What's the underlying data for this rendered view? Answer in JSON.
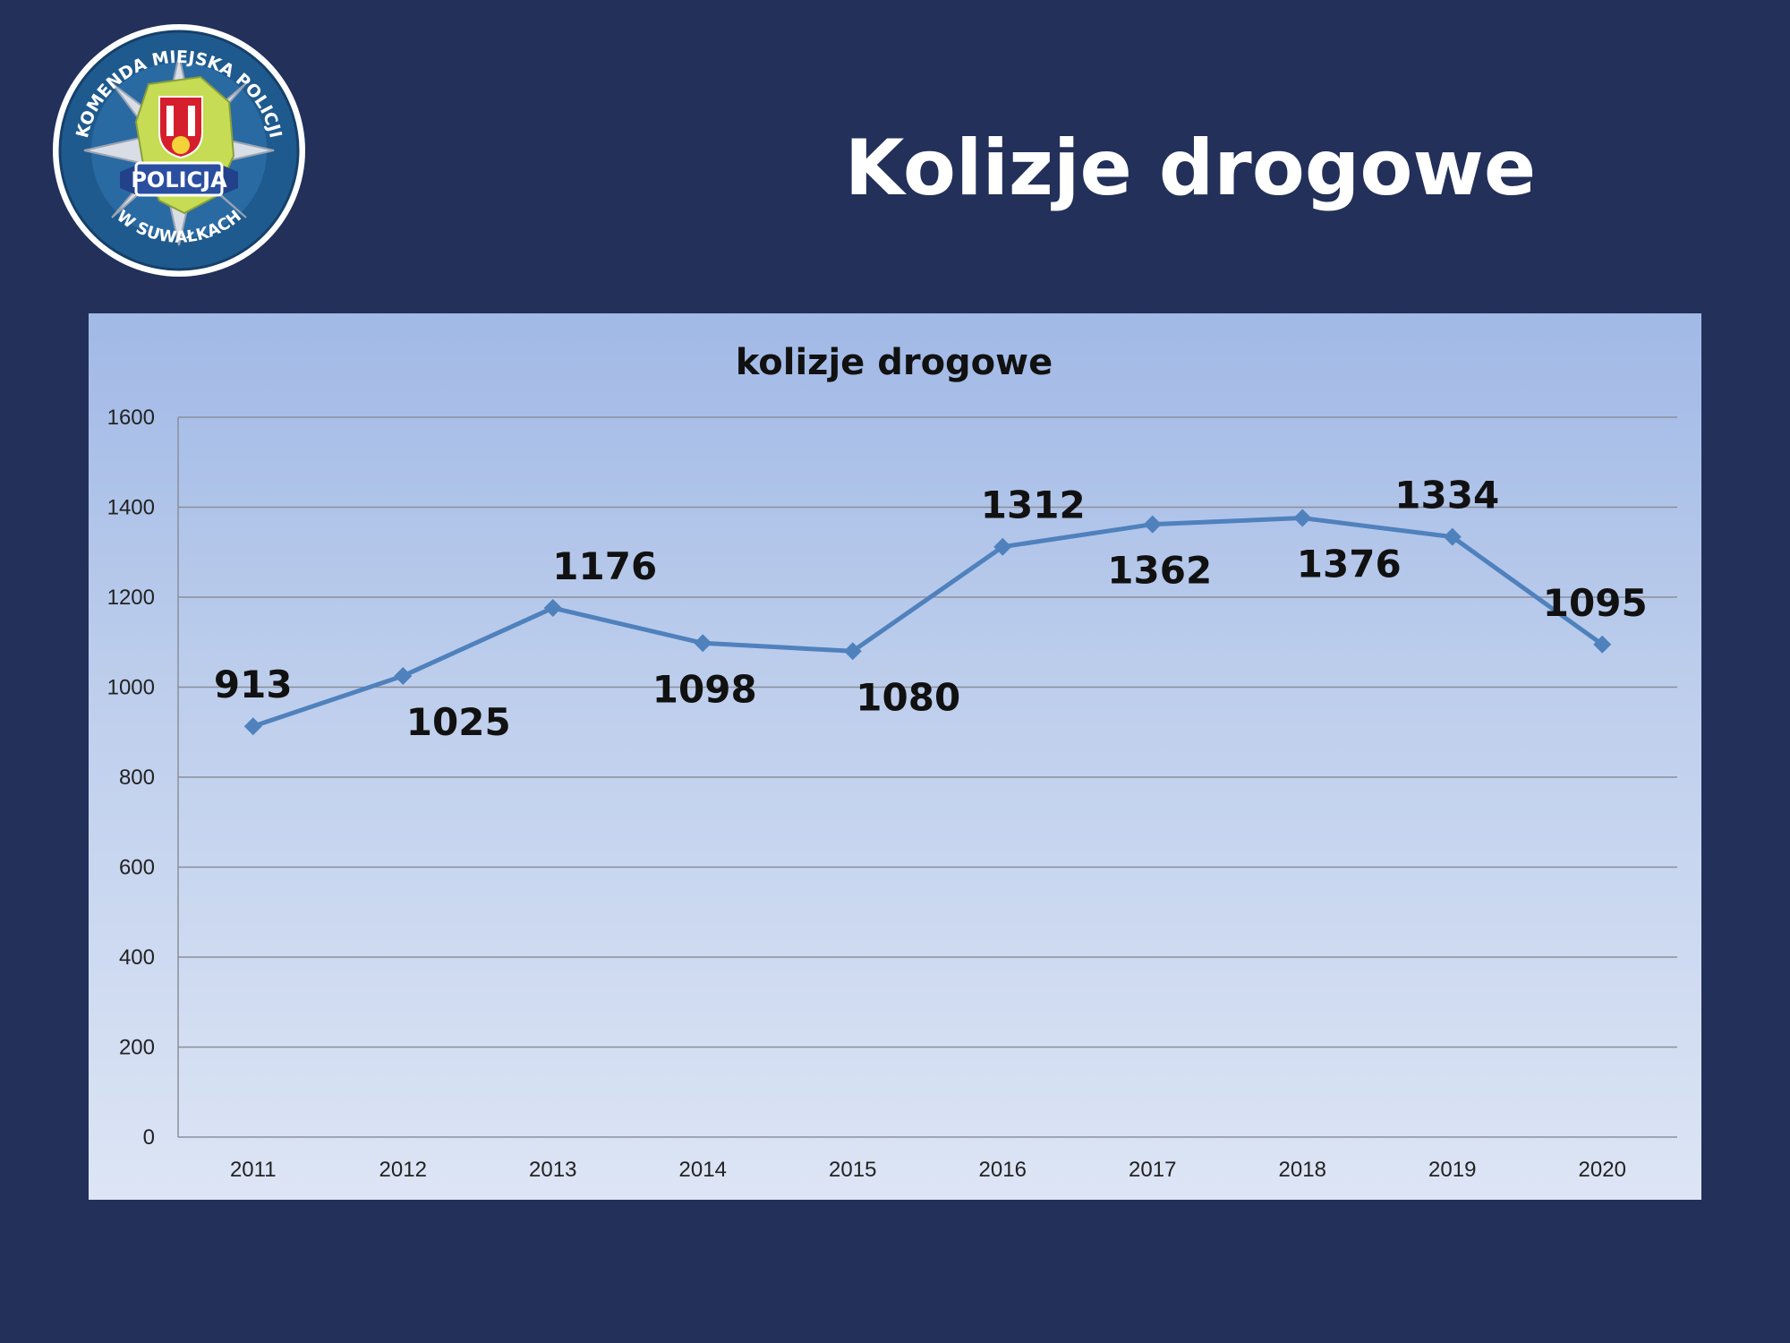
{
  "slide": {
    "title": "Kolizje drogowe",
    "logo": {
      "top_text": "KOMENDA MIEJSKA POLICJI",
      "banner_text": "POLICJA",
      "bottom_text": "W SUWAŁKACH"
    }
  },
  "colors": {
    "background": "#22305a",
    "series": "#4f81bd",
    "grid": "#8a8f99"
  },
  "chart_data": {
    "type": "line",
    "title": "kolizje drogowe",
    "xlabel": "",
    "ylabel": "",
    "categories": [
      "2011",
      "2012",
      "2013",
      "2014",
      "2015",
      "2016",
      "2017",
      "2018",
      "2019",
      "2020"
    ],
    "series": [
      {
        "values": [
          913,
          1025,
          1176,
          1098,
          1080,
          1312,
          1362,
          1376,
          1334,
          1095
        ]
      }
    ],
    "ylim": [
      0,
      1600
    ],
    "yticks": [
      0,
      200,
      400,
      600,
      800,
      1000,
      1200,
      1400,
      1600
    ],
    "grid": true,
    "legend": "none",
    "marker": "diamond"
  }
}
